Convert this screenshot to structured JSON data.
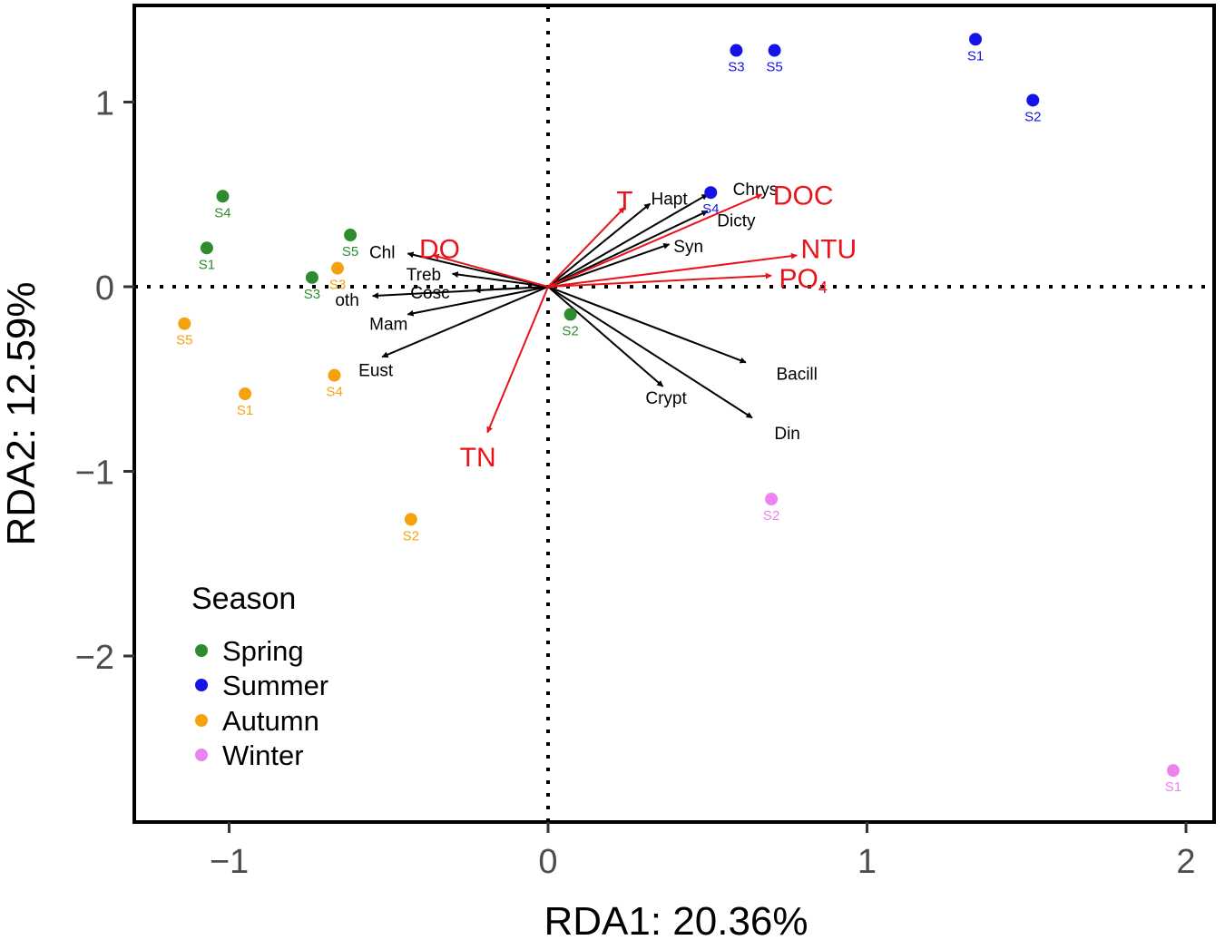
{
  "chart_data": {
    "type": "scatter",
    "title": "",
    "xlabel": "RDA1: 20.36%",
    "ylabel": "RDA2: 12.59%",
    "xlim": [
      -1.3,
      2.1
    ],
    "ylim": [
      -2.9,
      1.5
    ],
    "xticks": [
      -1,
      0,
      1,
      2
    ],
    "xtick_labels": [
      "−1",
      "0",
      "1",
      "2"
    ],
    "yticks": [
      -2,
      -1,
      0,
      1
    ],
    "ytick_labels": [
      "−2",
      "−1",
      "0",
      "1"
    ],
    "reference_lines": "dotted lines at x = 0 and y = 0",
    "colors": {
      "Spring": "#2e8b2e",
      "Summer": "#1414e6",
      "Autumn": "#f5a20e",
      "Winter": "#ee82ee",
      "environment_arrow": "#e8141b",
      "species_arrow": "#000000"
    },
    "legend": {
      "title": "Season",
      "position": "bottom-left",
      "entries": [
        "Spring",
        "Summer",
        "Autumn",
        "Winter"
      ]
    },
    "sites": [
      {
        "season": "Spring",
        "label": "S4",
        "x": -1.02,
        "y": 0.49
      },
      {
        "season": "Spring",
        "label": "S1",
        "x": -1.07,
        "y": 0.21
      },
      {
        "season": "Spring",
        "label": "S5",
        "x": -0.62,
        "y": 0.28
      },
      {
        "season": "Spring",
        "label": "S3",
        "x": -0.74,
        "y": 0.05
      },
      {
        "season": "Spring",
        "label": "S2",
        "x": 0.07,
        "y": -0.15
      },
      {
        "season": "Summer",
        "label": "S3",
        "x": 0.59,
        "y": 1.28
      },
      {
        "season": "Summer",
        "label": "S5",
        "x": 0.71,
        "y": 1.28
      },
      {
        "season": "Summer",
        "label": "S1",
        "x": 1.34,
        "y": 1.34
      },
      {
        "season": "Summer",
        "label": "S2",
        "x": 1.52,
        "y": 1.01
      },
      {
        "season": "Summer",
        "label": "S4",
        "x": 0.51,
        "y": 0.51
      },
      {
        "season": "Autumn",
        "label": "S3",
        "x": -0.66,
        "y": 0.1
      },
      {
        "season": "Autumn",
        "label": "S5",
        "x": -1.14,
        "y": -0.2
      },
      {
        "season": "Autumn",
        "label": "S1",
        "x": -0.95,
        "y": -0.58
      },
      {
        "season": "Autumn",
        "label": "S4",
        "x": -0.67,
        "y": -0.48
      },
      {
        "season": "Autumn",
        "label": "S2",
        "x": -0.43,
        "y": -1.26
      },
      {
        "season": "Winter",
        "label": "S2",
        "x": 0.7,
        "y": -1.15
      },
      {
        "season": "Winter",
        "label": "S1",
        "x": 1.96,
        "y": -2.62
      }
    ],
    "species_arrows": [
      {
        "label": "Hapt",
        "x": 0.32,
        "y": 0.45,
        "lx": 0.38,
        "ly": 0.48
      },
      {
        "label": "Chrys",
        "x": 0.5,
        "y": 0.5,
        "lx": 0.65,
        "ly": 0.53
      },
      {
        "label": "Dicty",
        "x": 0.5,
        "y": 0.41,
        "lx": 0.59,
        "ly": 0.36
      },
      {
        "label": "Syn",
        "x": 0.38,
        "y": 0.23,
        "lx": 0.44,
        "ly": 0.22
      },
      {
        "label": "Bacill",
        "x": 0.62,
        "y": -0.41,
        "lx": 0.78,
        "ly": -0.47
      },
      {
        "label": "Crypt",
        "x": 0.36,
        "y": -0.54,
        "lx": 0.37,
        "ly": -0.6
      },
      {
        "label": "Din",
        "x": 0.64,
        "y": -0.71,
        "lx": 0.75,
        "ly": -0.79
      },
      {
        "label": "Chl",
        "x": -0.44,
        "y": 0.18,
        "lx": -0.52,
        "ly": 0.19
      },
      {
        "label": "Treb",
        "x": -0.3,
        "y": 0.07,
        "lx": -0.39,
        "ly": 0.07
      },
      {
        "label": "Cosc",
        "x": -0.23,
        "y": -0.02,
        "lx": -0.37,
        "ly": -0.03
      },
      {
        "label": "oth",
        "x": -0.55,
        "y": -0.05,
        "lx": -0.63,
        "ly": -0.07
      },
      {
        "label": "Mam",
        "x": -0.44,
        "y": -0.15,
        "lx": -0.5,
        "ly": -0.2
      },
      {
        "label": "Eust",
        "x": -0.52,
        "y": -0.38,
        "lx": -0.54,
        "ly": -0.45
      }
    ],
    "env_arrows": [
      {
        "label": "T",
        "sub": "",
        "x": 0.24,
        "y": 0.43,
        "lx": 0.24,
        "ly": 0.47
      },
      {
        "label": "DOC",
        "sub": "",
        "x": 0.67,
        "y": 0.5,
        "lx": 0.8,
        "ly": 0.5
      },
      {
        "label": "NTU",
        "sub": "",
        "x": 0.78,
        "y": 0.17,
        "lx": 0.88,
        "ly": 0.21
      },
      {
        "label": "PO",
        "sub": "4",
        "x": 0.7,
        "y": 0.06,
        "lx": 0.8,
        "ly": 0.05
      },
      {
        "label": "DO",
        "sub": "",
        "x": -0.36,
        "y": 0.17,
        "lx": -0.34,
        "ly": 0.21
      },
      {
        "label": "TN",
        "sub": "",
        "x": -0.19,
        "y": -0.79,
        "lx": -0.22,
        "ly": -0.92
      }
    ]
  }
}
